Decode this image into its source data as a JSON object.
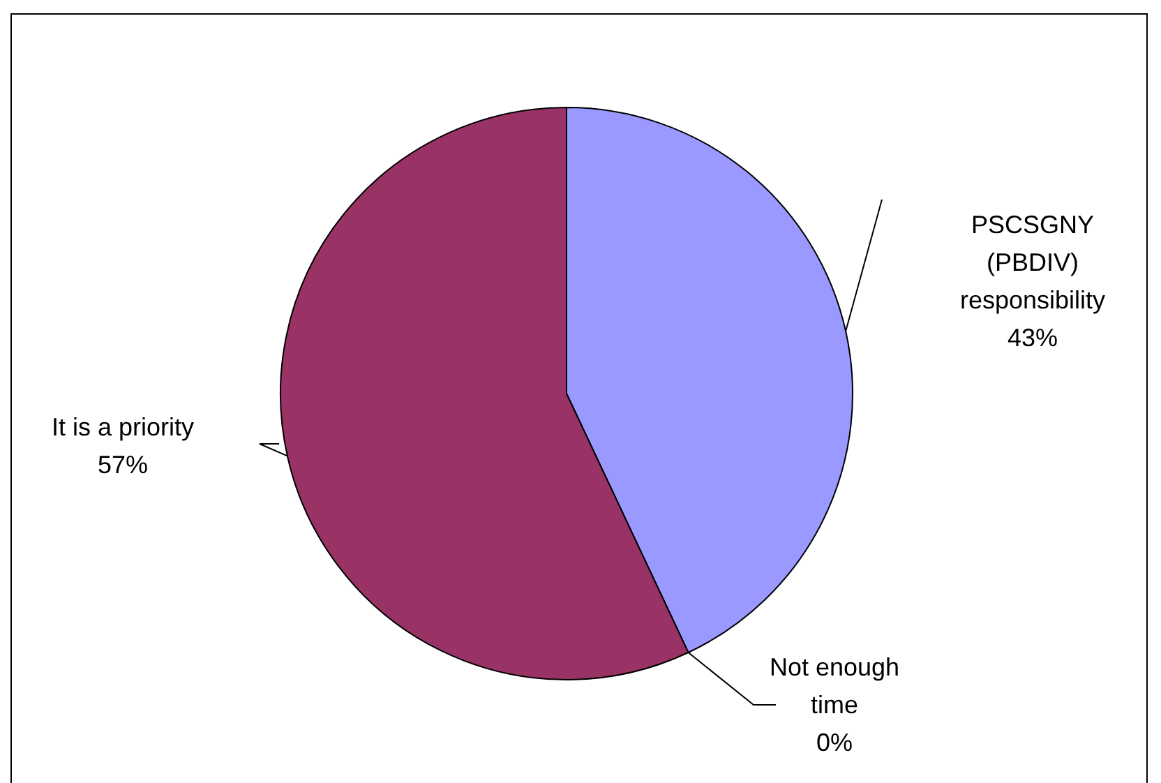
{
  "chart_data": {
    "type": "pie",
    "categories": [
      "PSCSGNY (PBDIV) responsibility",
      "Not enough time",
      "It is a priority"
    ],
    "values": [
      43,
      0,
      57
    ],
    "colors": [
      "#9999ff",
      "#ffffcc",
      "#993366"
    ],
    "value_labels": [
      "43%",
      "0%",
      "57%"
    ]
  }
}
